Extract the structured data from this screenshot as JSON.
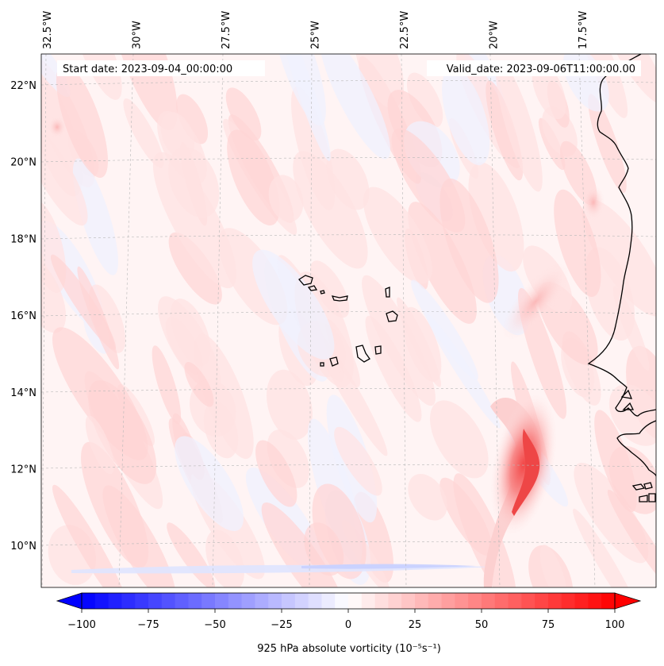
{
  "map": {
    "start_date_label": "Start date: 2023-09-04_00:00:00",
    "valid_date_label": "Valid_date: 2023-09-06T11:00:00.00",
    "longitude_labels": [
      {
        "lon": -32.5,
        "label": "32.5°W"
      },
      {
        "lon": -30,
        "label": "30°W"
      },
      {
        "lon": -27.5,
        "label": "27.5°W"
      },
      {
        "lon": -25,
        "label": "25°W"
      },
      {
        "lon": -22.5,
        "label": "22.5°W"
      },
      {
        "lon": -20,
        "label": "20°W"
      },
      {
        "lon": -17.5,
        "label": "17.5°W"
      }
    ],
    "latitude_labels": [
      {
        "lat": 22,
        "label": "22°N"
      },
      {
        "lat": 20,
        "label": "20°N"
      },
      {
        "lat": 18,
        "label": "18°N"
      },
      {
        "lat": 16,
        "label": "16°N"
      },
      {
        "lat": 14,
        "label": "14°N"
      },
      {
        "lat": 12,
        "label": "12°N"
      },
      {
        "lat": 10,
        "label": "10°N"
      }
    ],
    "field": "925 hPa absolute vorticity",
    "features": [
      "Cape Verde islands",
      "West African coastline",
      "positive vorticity maximum near 11°N 19.5°W"
    ]
  },
  "colorbar": {
    "label": "925 hPa absolute vorticity (10⁻⁵s⁻¹)",
    "min": -100,
    "max": 100,
    "step": 5,
    "low_color": "#0000ff",
    "mid_color": "#ffffff",
    "high_color": "#ff0000",
    "ticks": [
      {
        "value": -100,
        "label": "−100"
      },
      {
        "value": -75,
        "label": "−75"
      },
      {
        "value": -50,
        "label": "−50"
      },
      {
        "value": -25,
        "label": "−25"
      },
      {
        "value": 0,
        "label": "0"
      },
      {
        "value": 25,
        "label": "25"
      },
      {
        "value": 50,
        "label": "50"
      },
      {
        "value": 75,
        "label": "75"
      },
      {
        "value": 100,
        "label": "100"
      }
    ]
  }
}
